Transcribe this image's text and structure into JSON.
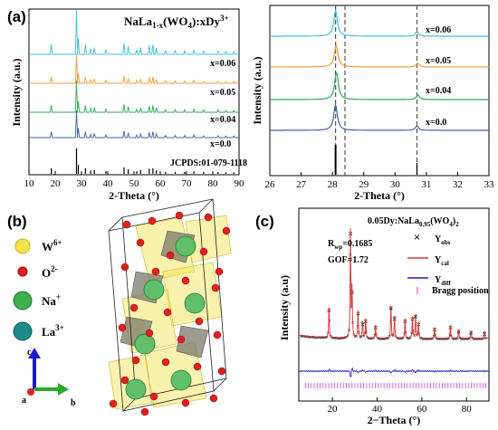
{
  "panel_labels": {
    "a": "(a)",
    "b": "(b)",
    "c": "(c)"
  },
  "panel_a_left": {
    "title": "NaLa1-x(WO4):xDy3+",
    "ylabel": "Intensity (a.u.)",
    "xlabel": "2-Theta (°)",
    "xticks": [
      "10",
      "20",
      "30",
      "40",
      "50",
      "60",
      "70",
      "80",
      "90"
    ],
    "labels": {
      "x006": "x=0.06",
      "x005": "x=0.05",
      "x004": "x=0.04",
      "x00": "x=0.0",
      "ref": "JCPDS:01-079-1118"
    }
  },
  "panel_a_right": {
    "ylabel": "Intensity (a.u.)",
    "xlabel": "2-Theta (°)",
    "xticks": [
      "26",
      "27",
      "28",
      "29",
      "30",
      "31",
      "32",
      "33"
    ],
    "labels": {
      "x006": "x=0.06",
      "x005": "x=0.05",
      "x004": "x=0.04",
      "x00": "x=0.0"
    }
  },
  "panel_b": {
    "legend": [
      {
        "label": "W6+",
        "color": "#f2e34c"
      },
      {
        "label": "O2-",
        "color": "#e02020"
      },
      {
        "label": "Na+",
        "color": "#3fae4f"
      },
      {
        "label": "La3+",
        "color": "#1f8a8a"
      }
    ],
    "axes": {
      "a": "a",
      "b": "b",
      "c": "c"
    }
  },
  "panel_c": {
    "title": "0.05Dy:NaLa0.95(WO4)2",
    "rwp": "Rwp=0.1685",
    "gof": "GOF=1.72",
    "ylabel": "Intensity (a.u)",
    "xlabel": "2−Theta (°)",
    "xticks": [
      "20",
      "40",
      "60",
      "80"
    ],
    "legend": {
      "obs": "Yobs",
      "cal": "Ycal",
      "diff": "Ydiff",
      "bragg": "Bragg position"
    }
  },
  "colors": {
    "x006": "#3fbfe0",
    "x005": "#f39a3a",
    "x004": "#2aaa55",
    "x00": "#4560a8",
    "ref": "#000000",
    "cal": "#e03030",
    "diff": "#1a1ad0",
    "bragg": "#d040d0"
  },
  "chart_data": [
    {
      "type": "line",
      "title": "NaLa1-x(WO4):xDy3+",
      "xlabel": "2-Theta (°)",
      "ylabel": "Intensity (a.u.)",
      "xlim": [
        10,
        90
      ],
      "series": [
        {
          "name": "x=0.06"
        },
        {
          "name": "x=0.05"
        },
        {
          "name": "x=0.04"
        },
        {
          "name": "x=0.0"
        },
        {
          "name": "JCPDS:01-079-1118"
        }
      ],
      "peaks": [
        18.5,
        28.1,
        28.8,
        31.5,
        33.5,
        34.9,
        39.3,
        46.2,
        47.8,
        51.0,
        52.5,
        55.8,
        57.2,
        58.5,
        62.0,
        65.7,
        69.3,
        72.8,
        76.5,
        82.0,
        85.0,
        88.0
      ],
      "peak_rel": [
        0.22,
        1.0,
        0.35,
        0.22,
        0.12,
        0.15,
        0.1,
        0.25,
        0.18,
        0.1,
        0.15,
        0.2,
        0.22,
        0.14,
        0.08,
        0.08,
        0.08,
        0.1,
        0.07,
        0.07,
        0.06,
        0.06
      ]
    },
    {
      "type": "line",
      "xlabel": "2-Theta (°)",
      "ylabel": "Intensity (a.u.)",
      "xlim": [
        26,
        33
      ],
      "series": [
        {
          "name": "x=0.06"
        },
        {
          "name": "x=0.05"
        },
        {
          "name": "x=0.04"
        },
        {
          "name": "x=0.0"
        }
      ],
      "peaks": [
        28.1,
        30.7
      ],
      "peak_rel": [
        1.0,
        0.18
      ],
      "dashed_lines": [
        28.1,
        28.4,
        30.7
      ]
    },
    {
      "type": "scatter",
      "title": "0.05Dy:NaLa0.95(WO4)2",
      "xlabel": "2−Theta (°)",
      "ylabel": "Intensity (a.u)",
      "xlim": [
        5,
        90
      ],
      "series": [
        {
          "name": "Yobs"
        },
        {
          "name": "Ycal"
        },
        {
          "name": "Ydiff"
        },
        {
          "name": "Bragg position"
        }
      ],
      "peaks": [
        18.5,
        28.1,
        28.8,
        31.5,
        33.5,
        34.9,
        39.3,
        46.2,
        47.8,
        52.5,
        55.8,
        57.2,
        58.5,
        65.7,
        72.8,
        76.5,
        82.0,
        88.0
      ],
      "peak_rel": [
        0.28,
        1.0,
        0.45,
        0.25,
        0.15,
        0.18,
        0.12,
        0.3,
        0.2,
        0.18,
        0.2,
        0.22,
        0.15,
        0.1,
        0.12,
        0.08,
        0.07,
        0.06
      ]
    }
  ]
}
